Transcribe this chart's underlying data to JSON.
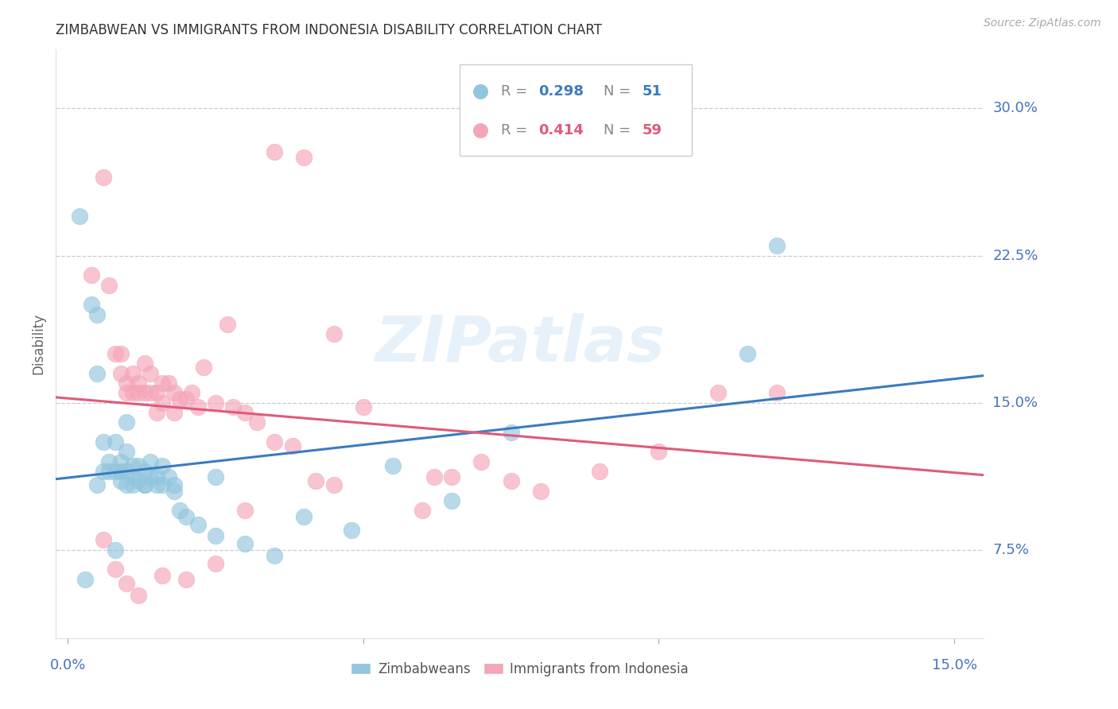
{
  "title": "ZIMBABWEAN VS IMMIGRANTS FROM INDONESIA DISABILITY CORRELATION CHART",
  "source": "Source: ZipAtlas.com",
  "ylabel": "Disability",
  "ytick_labels": [
    "30.0%",
    "22.5%",
    "15.0%",
    "7.5%"
  ],
  "ytick_values": [
    0.3,
    0.225,
    0.15,
    0.075
  ],
  "xlim": [
    -0.002,
    0.155
  ],
  "ylim": [
    0.03,
    0.33
  ],
  "blue_color": "#92c5de",
  "pink_color": "#f4a5b8",
  "blue_line_color": "#3a7bbf",
  "pink_line_color": "#e05a7a",
  "blue_label": "Zimbabweans",
  "pink_label": "Immigrants from Indonesia",
  "watermark": "ZIPatlas",
  "background_color": "#ffffff",
  "grid_color": "#cccccc",
  "tick_label_color": "#4472c4",
  "title_color": "#333333",
  "blue_scatter_x": [
    0.002,
    0.003,
    0.004,
    0.005,
    0.005,
    0.006,
    0.006,
    0.007,
    0.007,
    0.008,
    0.008,
    0.009,
    0.009,
    0.009,
    0.01,
    0.01,
    0.01,
    0.011,
    0.011,
    0.011,
    0.012,
    0.012,
    0.013,
    0.013,
    0.014,
    0.014,
    0.015,
    0.015,
    0.016,
    0.016,
    0.017,
    0.018,
    0.019,
    0.02,
    0.022,
    0.025,
    0.03,
    0.035,
    0.04,
    0.048,
    0.055,
    0.065,
    0.075,
    0.005,
    0.008,
    0.01,
    0.013,
    0.018,
    0.025,
    0.115,
    0.12
  ],
  "blue_scatter_y": [
    0.245,
    0.06,
    0.2,
    0.165,
    0.195,
    0.115,
    0.13,
    0.115,
    0.12,
    0.13,
    0.115,
    0.115,
    0.11,
    0.12,
    0.14,
    0.125,
    0.115,
    0.118,
    0.108,
    0.112,
    0.11,
    0.118,
    0.115,
    0.108,
    0.112,
    0.12,
    0.108,
    0.112,
    0.118,
    0.108,
    0.112,
    0.108,
    0.095,
    0.092,
    0.088,
    0.082,
    0.078,
    0.072,
    0.092,
    0.085,
    0.118,
    0.1,
    0.135,
    0.108,
    0.075,
    0.108,
    0.108,
    0.105,
    0.112,
    0.175,
    0.23
  ],
  "pink_scatter_x": [
    0.004,
    0.006,
    0.007,
    0.008,
    0.009,
    0.009,
    0.01,
    0.01,
    0.011,
    0.011,
    0.012,
    0.012,
    0.013,
    0.013,
    0.014,
    0.014,
    0.015,
    0.015,
    0.016,
    0.016,
    0.017,
    0.018,
    0.018,
    0.019,
    0.02,
    0.021,
    0.022,
    0.023,
    0.025,
    0.027,
    0.028,
    0.03,
    0.032,
    0.035,
    0.038,
    0.042,
    0.045,
    0.05,
    0.06,
    0.062,
    0.065,
    0.07,
    0.075,
    0.08,
    0.09,
    0.1,
    0.11,
    0.12,
    0.035,
    0.04,
    0.045,
    0.006,
    0.008,
    0.01,
    0.012,
    0.016,
    0.02,
    0.025,
    0.03
  ],
  "pink_scatter_y": [
    0.215,
    0.265,
    0.21,
    0.175,
    0.165,
    0.175,
    0.16,
    0.155,
    0.165,
    0.155,
    0.16,
    0.155,
    0.17,
    0.155,
    0.165,
    0.155,
    0.155,
    0.145,
    0.16,
    0.15,
    0.16,
    0.155,
    0.145,
    0.152,
    0.152,
    0.155,
    0.148,
    0.168,
    0.15,
    0.19,
    0.148,
    0.145,
    0.14,
    0.13,
    0.128,
    0.11,
    0.108,
    0.148,
    0.095,
    0.112,
    0.112,
    0.12,
    0.11,
    0.105,
    0.115,
    0.125,
    0.155,
    0.155,
    0.278,
    0.275,
    0.185,
    0.08,
    0.065,
    0.058,
    0.052,
    0.062,
    0.06,
    0.068,
    0.095
  ]
}
